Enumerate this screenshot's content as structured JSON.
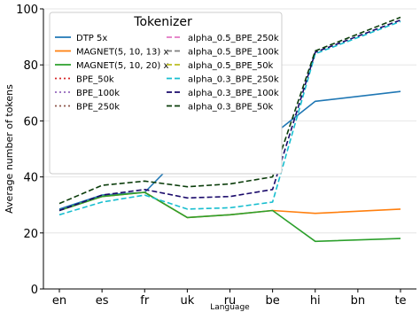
{
  "chart_data": {
    "type": "line",
    "title": "",
    "xlabel": "Language",
    "ylabel": "Average number of tokens",
    "categories": [
      "en",
      "es",
      "fr",
      "uk",
      "ru",
      "be",
      "hi",
      "bn",
      "te"
    ],
    "ylim": [
      0,
      100
    ],
    "yticks": [
      0,
      20,
      40,
      60,
      80,
      100
    ],
    "grid": true,
    "legend": {
      "title": "Tokenizer",
      "placement": "top-center",
      "columns": 2
    },
    "series": [
      {
        "name": "DTP 5x",
        "color": "#1f77b4",
        "dash": "solid",
        "values": [
          28.5,
          33.5,
          34.5,
          50,
          52.5,
          55,
          67,
          null,
          70.5
        ]
      },
      {
        "name": "MAGNET(5, 10, 13) x",
        "color": "#ff7f0e",
        "dash": "solid",
        "values": [
          28,
          33,
          34.5,
          25.5,
          26.5,
          28,
          27,
          null,
          28.5
        ]
      },
      {
        "name": "MAGNET(5, 10, 20) x",
        "color": "#2ca02c",
        "dash": "solid",
        "values": [
          28,
          33,
          34.5,
          25.5,
          26.5,
          28,
          17,
          null,
          18
        ]
      },
      {
        "name": "BPE_50k",
        "color": "#d62728",
        "dash": "dotted",
        "values": [
          null,
          null,
          null,
          null,
          null,
          null,
          null,
          null,
          null
        ]
      },
      {
        "name": "BPE_100k",
        "color": "#9467bd",
        "dash": "dotted",
        "values": [
          null,
          null,
          null,
          null,
          null,
          null,
          null,
          null,
          null
        ]
      },
      {
        "name": "BPE_250k",
        "color": "#8c564b",
        "dash": "dotted",
        "values": [
          null,
          null,
          null,
          null,
          null,
          null,
          null,
          null,
          null
        ]
      },
      {
        "name": "alpha_0.5_BPE_250k",
        "color": "#e377c2",
        "dash": "dashed",
        "values": [
          null,
          null,
          null,
          null,
          null,
          null,
          null,
          null,
          null
        ]
      },
      {
        "name": "alpha_0.5_BPE_100k",
        "color": "#7f7f7f",
        "dash": "dashed",
        "values": [
          null,
          null,
          null,
          null,
          null,
          null,
          null,
          null,
          null
        ]
      },
      {
        "name": "alpha_0.5_BPE_50k",
        "color": "#bcbd22",
        "dash": "dashed",
        "values": [
          null,
          null,
          null,
          null,
          null,
          null,
          null,
          null,
          null
        ]
      },
      {
        "name": "alpha_0.3_BPE_250k",
        "color": "#17becf",
        "dash": "dashed",
        "values": [
          26.5,
          31,
          33.5,
          28.5,
          29,
          31,
          84,
          null,
          95.5
        ]
      },
      {
        "name": "alpha_0.3_BPE_100k",
        "color": "#1a0a6b",
        "dash": "dashed",
        "values": [
          28,
          33.5,
          35.5,
          32.5,
          33,
          35.5,
          84.5,
          null,
          96
        ]
      },
      {
        "name": "alpha_0.3_BPE_50k",
        "color": "#0b3d0b",
        "dash": "dashed",
        "values": [
          30.5,
          37,
          38.5,
          36.5,
          37.5,
          40,
          85,
          null,
          97
        ]
      }
    ]
  }
}
